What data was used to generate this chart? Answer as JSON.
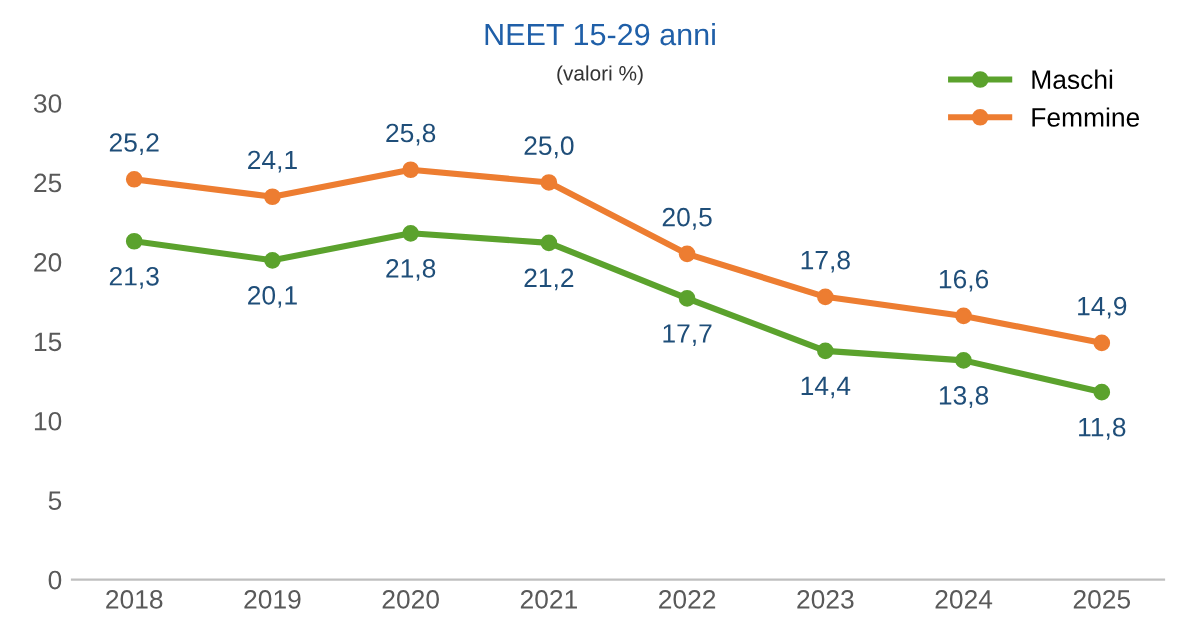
{
  "chart_data": {
    "type": "line",
    "title": "NEET 15-29 anni",
    "subtitle": "(valori %)",
    "categories": [
      "2018",
      "2019",
      "2020",
      "2021",
      "2022",
      "2023",
      "2024",
      "2025"
    ],
    "series": [
      {
        "name": "Maschi",
        "color": "#5ba22d",
        "values": [
          21.3,
          20.1,
          21.8,
          21.2,
          17.7,
          14.4,
          13.8,
          11.8
        ],
        "value_labels": [
          "21,3",
          "20,1",
          "21,8",
          "21,2",
          "17,7",
          "14,4",
          "13,8",
          "11,8"
        ]
      },
      {
        "name": "Femmine",
        "color": "#ed7d31",
        "values": [
          25.2,
          24.1,
          25.8,
          25.0,
          20.5,
          17.8,
          16.6,
          14.9
        ],
        "value_labels": [
          "25,2",
          "24,1",
          "25,8",
          "25,0",
          "20,5",
          "17,8",
          "16,6",
          "14,9"
        ]
      }
    ],
    "ylim": [
      0,
      30
    ],
    "yticks": [
      0,
      5,
      10,
      15,
      20,
      25,
      30
    ],
    "grid": false,
    "legend": "top right",
    "marker": "circle",
    "line_style": "solid"
  }
}
